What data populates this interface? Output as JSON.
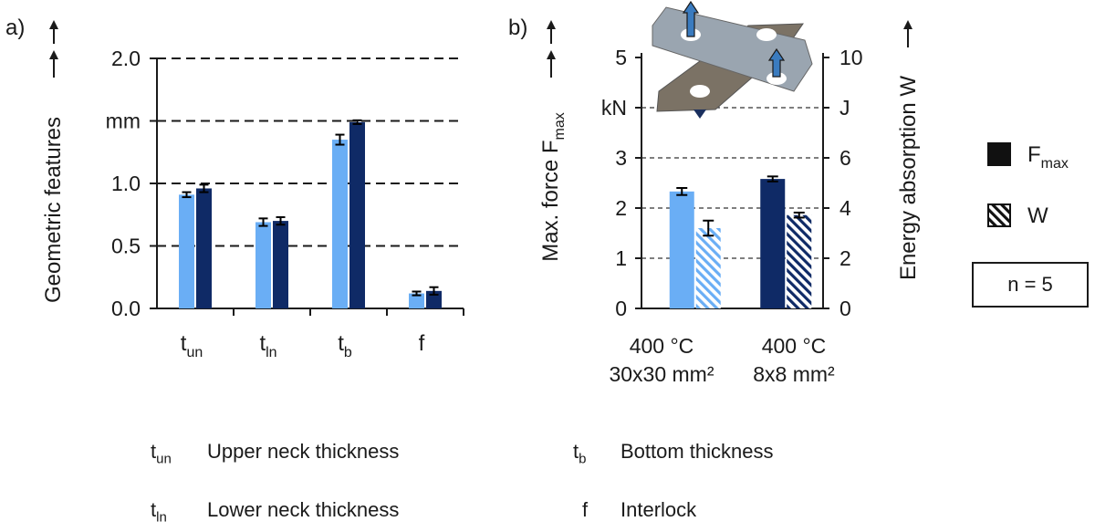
{
  "colors": {
    "light": "#6aaef5",
    "dark": "#0f2a66",
    "hatch_light": "#6aaef5",
    "hatch_dark": "#0f2a66",
    "plate": "#9aa5b0",
    "plate2": "#7b7265",
    "arrow": "#3a7bbf"
  },
  "chart_data": [
    {
      "panel_label": "a)",
      "type": "bar",
      "ylabel": "Geometric features",
      "yunit": "mm",
      "ylim": [
        0,
        2.0
      ],
      "y_ticks": [
        "0.0",
        "0.5",
        "1.0",
        "",
        "2.0"
      ],
      "grid": "dashed",
      "categories": [
        {
          "main": "t",
          "sub": "un"
        },
        {
          "main": "t",
          "sub": "ln"
        },
        {
          "main": "t",
          "sub": "b"
        },
        {
          "main": "f",
          "sub": ""
        }
      ],
      "series": [
        {
          "color": "light",
          "values": [
            0.91,
            0.69,
            1.35,
            0.12
          ],
          "errors": [
            0.02,
            0.03,
            0.04,
            0.015
          ]
        },
        {
          "color": "dark",
          "values": [
            0.96,
            0.7,
            1.49,
            0.14
          ],
          "errors": [
            0.03,
            0.03,
            0.015,
            0.03
          ]
        }
      ]
    },
    {
      "panel_label": "b)",
      "type": "bar",
      "ylabel_left": {
        "main": "Max. force F",
        "sub": "max"
      },
      "yunit_left": "kN",
      "ylim_left": [
        0,
        5
      ],
      "y_ticks_left": [
        "0",
        "1",
        "2",
        "3",
        "",
        "5"
      ],
      "ylabel_right": "Energy absorption W",
      "yunit_right": "J",
      "ylim_right": [
        0,
        10
      ],
      "y_ticks_right": [
        "0",
        "2",
        "4",
        "6",
        "",
        "10"
      ],
      "grid": "dashed",
      "categories": [
        {
          "line1": "400 °C",
          "line2": "30x30 mm²"
        },
        {
          "line1": "400 °C",
          "line2": "8x8 mm²"
        }
      ],
      "groups": [
        {
          "color": "light",
          "Fmax": 2.33,
          "Fmax_err": 0.07,
          "W": 3.2,
          "W_err": 0.3
        },
        {
          "color": "dark",
          "Fmax": 2.58,
          "Fmax_err": 0.05,
          "W": 3.72,
          "W_err": 0.1
        }
      ],
      "legend": [
        {
          "main": "F",
          "sub": "max",
          "style": "solid"
        },
        {
          "main": "W",
          "sub": "",
          "style": "hatched"
        }
      ],
      "note": "n = 5"
    }
  ],
  "glossary": [
    {
      "sym": "t",
      "sub": "un",
      "desc": "Upper neck thickness"
    },
    {
      "sym": "t",
      "sub": "b",
      "desc": "Bottom thickness"
    },
    {
      "sym": "t",
      "sub": "ln",
      "desc": "Lower neck thickness"
    },
    {
      "sym": "f",
      "sub": "",
      "desc": "Interlock"
    }
  ]
}
